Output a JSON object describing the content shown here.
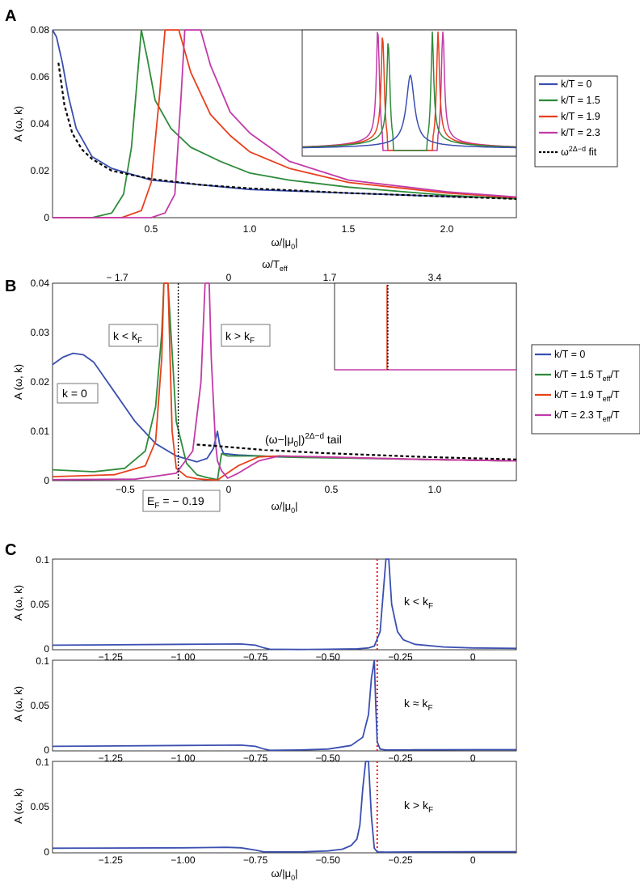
{
  "chart_data": [
    {
      "panel": "A",
      "type": "line",
      "ylabel": "A (ω, k)",
      "xlabel": "ω/|μ₀|",
      "xlim": [
        0,
        2.35
      ],
      "ylim": [
        0,
        0.08
      ],
      "xticks": [
        "0.5",
        "1.0",
        "1.5",
        "2.0"
      ],
      "yticks": [
        "0",
        "0.02",
        "0.04",
        "0.06",
        "0.08"
      ],
      "series": [
        {
          "name": "k/T = 0",
          "color": "#3a4fb0",
          "x": [
            0.0,
            0.02,
            0.05,
            0.08,
            0.12,
            0.2,
            0.3,
            0.5,
            0.75,
            1.0,
            1.5,
            2.0,
            2.35
          ],
          "y": [
            0.08,
            0.077,
            0.066,
            0.052,
            0.038,
            0.026,
            0.021,
            0.016,
            0.014,
            0.012,
            0.0105,
            0.009,
            0.0083
          ]
        },
        {
          "name": "k/T = 1.5",
          "color": "#2e8b3a",
          "x": [
            0.0,
            0.2,
            0.3,
            0.36,
            0.4,
            0.42,
            0.44,
            0.45,
            0.48,
            0.52,
            0.6,
            0.7,
            0.85,
            1.0,
            1.2,
            1.5,
            2.0,
            2.35
          ],
          "y": [
            0.0,
            0.0,
            0.002,
            0.01,
            0.03,
            0.05,
            0.07,
            0.08,
            0.068,
            0.05,
            0.038,
            0.03,
            0.024,
            0.019,
            0.016,
            0.013,
            0.0095,
            0.008
          ]
        },
        {
          "name": "k/T = 1.9",
          "color": "#e8401c",
          "x": [
            0.0,
            0.35,
            0.45,
            0.5,
            0.54,
            0.56,
            0.57,
            0.6,
            0.64,
            0.7,
            0.8,
            0.9,
            1.0,
            1.2,
            1.5,
            2.0,
            2.35
          ],
          "y": [
            0.0,
            0.0,
            0.003,
            0.015,
            0.05,
            0.07,
            0.08,
            0.08,
            0.08,
            0.062,
            0.044,
            0.035,
            0.028,
            0.021,
            0.015,
            0.0105,
            0.0085
          ]
        },
        {
          "name": "k/T = 2.3",
          "color": "#c23aa8",
          "x": [
            0.0,
            0.5,
            0.57,
            0.62,
            0.65,
            0.67,
            0.7,
            0.75,
            0.8,
            0.9,
            1.0,
            1.2,
            1.5,
            2.0,
            2.35
          ],
          "y": [
            0.0,
            0.0,
            0.002,
            0.01,
            0.05,
            0.08,
            0.08,
            0.08,
            0.065,
            0.045,
            0.036,
            0.024,
            0.016,
            0.011,
            0.0088
          ]
        },
        {
          "name": "ω^{2Δ−d} fit",
          "color": "#000000",
          "dashed": true,
          "x": [
            0.03,
            0.06,
            0.1,
            0.15,
            0.2,
            0.3,
            0.5,
            0.75,
            1.0,
            1.5,
            2.0,
            2.35
          ],
          "y": [
            0.066,
            0.048,
            0.036,
            0.029,
            0.025,
            0.02,
            0.0165,
            0.014,
            0.0125,
            0.0105,
            0.009,
            0.008
          ]
        }
      ],
      "legend": {
        "placement": "right",
        "entries": [
          "k/T = 0",
          "k/T = 1.5",
          "k/T = 1.9",
          "k/T = 2.3",
          "ω^{2Δ−d} fit"
        ]
      },
      "inset": {
        "description_none": true
      }
    },
    {
      "panel": "B",
      "type": "line",
      "ylabel": "A (ω, k)",
      "xlabel": "ω/|μ₀|",
      "top_xlabel": "ω/T_eff",
      "xlim": [
        -0.8,
        1.45
      ],
      "ylim": [
        0,
        0.04
      ],
      "xticks": [
        "−0.5",
        "0",
        "0.5",
        "1.0"
      ],
      "top_xticks": [
        "− 1.7",
        "0",
        "1.7",
        "3.4"
      ],
      "yticks": [
        "0",
        "0.01",
        "0.02",
        "0.03",
        "0.04"
      ],
      "series": [
        {
          "name": "k/T = 0",
          "color": "#3a4fb0",
          "x": [
            -0.8,
            -0.75,
            -0.7,
            -0.65,
            -0.6,
            -0.5,
            -0.4,
            -0.3,
            -0.2,
            -0.1,
            -0.05,
            -0.02,
            0.0,
            0.01,
            0.03,
            0.1,
            0.3,
            0.6,
            1.0,
            1.45
          ],
          "y": [
            0.0235,
            0.025,
            0.0258,
            0.0255,
            0.024,
            0.018,
            0.012,
            0.0075,
            0.005,
            0.0038,
            0.0045,
            0.0065,
            0.01,
            0.0075,
            0.0055,
            0.0052,
            0.0048,
            0.0046,
            0.0043,
            0.004
          ]
        },
        {
          "name": "k/T = 1.5 T_eff/T",
          "color": "#2e8b3a",
          "x": [
            -0.8,
            -0.6,
            -0.45,
            -0.35,
            -0.3,
            -0.27,
            -0.26,
            -0.24,
            -0.22,
            -0.2,
            -0.15,
            -0.1,
            -0.05,
            0.0,
            0.02,
            0.05,
            0.1,
            0.2,
            0.4,
            0.7,
            1.0,
            1.45
          ],
          "y": [
            0.0022,
            0.0018,
            0.0025,
            0.006,
            0.015,
            0.03,
            0.04,
            0.04,
            0.026,
            0.012,
            0.0035,
            0.0012,
            0.0006,
            0.0002,
            0.0055,
            0.005,
            0.005,
            0.005,
            0.0047,
            0.0045,
            0.0043,
            0.004
          ]
        },
        {
          "name": "k/T = 1.9 T_eff/T",
          "color": "#e8401c",
          "x": [
            -0.8,
            -0.5,
            -0.35,
            -0.3,
            -0.27,
            -0.26,
            -0.25,
            -0.24,
            -0.22,
            -0.2,
            -0.15,
            -0.1,
            -0.05,
            0.0,
            0.03,
            0.1,
            0.2,
            0.3,
            0.5,
            1.0,
            1.45
          ],
          "y": [
            0.0008,
            0.0012,
            0.003,
            0.008,
            0.025,
            0.04,
            0.04,
            0.04,
            0.01,
            0.0025,
            0.0008,
            0.0004,
            0.0002,
            0.0001,
            0.001,
            0.003,
            0.0048,
            0.005,
            0.0048,
            0.0043,
            0.004
          ]
        },
        {
          "name": "k/T = 2.3 T_eff/T",
          "color": "#c23aa8",
          "x": [
            -0.8,
            -0.4,
            -0.2,
            -0.12,
            -0.08,
            -0.06,
            -0.05,
            -0.04,
            -0.03,
            -0.01,
            0.0,
            0.02,
            0.05,
            0.1,
            0.2,
            0.3,
            0.5,
            1.0,
            1.45
          ],
          "y": [
            0.0002,
            0.0003,
            0.0015,
            0.006,
            0.02,
            0.04,
            0.04,
            0.04,
            0.025,
            0.008,
            0.004,
            0.002,
            0.0005,
            0.0015,
            0.004,
            0.005,
            0.0048,
            0.0043,
            0.004
          ]
        },
        {
          "name": "(ω−|μ₀|)^{2Δ−d} tail",
          "color": "#000000",
          "dashed": true,
          "x": [
            -0.1,
            0.0,
            0.2,
            0.5,
            1.0,
            1.45
          ],
          "y": [
            0.0073,
            0.007,
            0.0063,
            0.0056,
            0.0048,
            0.0043
          ]
        }
      ],
      "annotations": [
        "k < k_F",
        "k > k_F",
        "k = 0",
        "(ω−|μ₀|)^{2Δ−d} tail",
        "E_F = − 0.19"
      ],
      "legend": {
        "placement": "right",
        "entries": [
          "k/T = 0",
          "k/T = 1.5 T_eff/T",
          "k/T = 1.9 T_eff/T",
          "k/T = 2.3 T_eff/T"
        ]
      }
    },
    {
      "panel": "C",
      "type": "line",
      "xlabel": "ω/|μ₀|",
      "xlim": [
        -1.45,
        0.15
      ],
      "ylim": [
        0,
        0.1
      ],
      "xticks": [
        "−1.25",
        "−1.00",
        "−0.75",
        "−0.50",
        "−0.25",
        "0"
      ],
      "yticks": [
        "0",
        "0.05",
        "0.1"
      ],
      "subplots": [
        {
          "ylabel": "A (ω, k)",
          "annotation": "k < k_F",
          "vline": -0.33,
          "x": [
            -1.45,
            -1.0,
            -0.8,
            -0.75,
            -0.72,
            -0.7,
            -0.6,
            -0.5,
            -0.4,
            -0.36,
            -0.34,
            -0.32,
            -0.31,
            -0.3,
            -0.29,
            -0.28,
            -0.26,
            -0.24,
            -0.2,
            -0.1,
            0.0,
            0.15
          ],
          "y": [
            0.005,
            0.006,
            0.0063,
            0.005,
            0.002,
            0.0005,
            0.0003,
            0.0005,
            0.001,
            0.002,
            0.004,
            0.02,
            0.06,
            0.1,
            0.1,
            0.05,
            0.02,
            0.011,
            0.006,
            0.003,
            0.002,
            0.0015
          ]
        },
        {
          "ylabel": "A (ω, k)",
          "annotation": "k ≈ k_F",
          "vline": -0.33,
          "x": [
            -1.45,
            -1.0,
            -0.8,
            -0.75,
            -0.72,
            -0.7,
            -0.6,
            -0.5,
            -0.42,
            -0.38,
            -0.36,
            -0.35,
            -0.34,
            -0.335,
            -0.33,
            -0.32,
            -0.3,
            -0.2,
            0.0,
            0.15
          ],
          "y": [
            0.005,
            0.006,
            0.0063,
            0.005,
            0.002,
            0.0006,
            0.001,
            0.002,
            0.006,
            0.015,
            0.04,
            0.08,
            0.1,
            0.05,
            0.01,
            0.002,
            0.001,
            0.0012,
            0.0013,
            0.0013
          ]
        },
        {
          "ylabel": "A (ω, k)",
          "annotation": "k > k_F",
          "vline": -0.33,
          "x": [
            -1.45,
            -1.0,
            -0.85,
            -0.8,
            -0.75,
            -0.72,
            -0.6,
            -0.5,
            -0.45,
            -0.42,
            -0.4,
            -0.39,
            -0.38,
            -0.37,
            -0.36,
            -0.35,
            -0.34,
            -0.33,
            -0.3,
            -0.2,
            0.0,
            0.15
          ],
          "y": [
            0.005,
            0.0055,
            0.006,
            0.0055,
            0.003,
            0.001,
            0.001,
            0.002,
            0.004,
            0.008,
            0.015,
            0.03,
            0.07,
            0.1,
            0.1,
            0.04,
            0.005,
            0.001,
            0.0008,
            0.001,
            0.0012,
            0.0012
          ]
        }
      ],
      "vline_color": "#e8201c"
    }
  ],
  "labels": {
    "panel_a": "A",
    "panel_b": "B",
    "panel_c": "C",
    "ylabel": "A (ω, k)",
    "xlabel_base": "ω/|μ",
    "xlabel_sub": "0",
    "xlabel_end": "|",
    "top_xlabel_base": "ω/T",
    "top_xlabel_sub": "eff",
    "kf_sub": "F",
    "eff_sub": "eff",
    "ann_k_lt": "k < k",
    "ann_k_gt": "k > k",
    "ann_k_approx": "k ≈ k",
    "ann_k0": "k = 0",
    "ann_tail_base": "(ω−|μ",
    "ann_tail_mid": "|)",
    "ann_tail_sup": "2Δ−d",
    "ann_tail_end": " tail",
    "ann_ef_base": "E",
    "ann_ef_end": " = − 0.19",
    "legend_a": [
      "k/T = 0",
      "k/T = 1.5",
      "k/T = 1.9",
      "k/T = 2.3"
    ],
    "legend_a_fit_base": "ω",
    "legend_a_fit_sup": "2Δ−d",
    "legend_a_fit_end": " fit",
    "legend_b": [
      "k/T = 1.5 T",
      "k/T = 1.9 T",
      "k/T = 2.3 T"
    ],
    "legend_b0": "k/T = 0",
    "legend_b_tail": "/T"
  },
  "colors": {
    "blue": "#3a4fb0",
    "green": "#2e8b3a",
    "red": "#e8401c",
    "magenta": "#c23aa8",
    "black": "#000000"
  }
}
